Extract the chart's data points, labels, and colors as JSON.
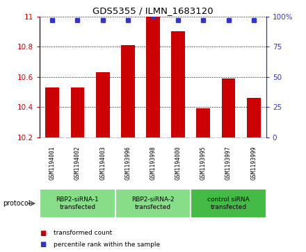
{
  "title": "GDS5355 / ILMN_1683120",
  "samples": [
    "GSM1194001",
    "GSM1194002",
    "GSM1194003",
    "GSM1193996",
    "GSM1193998",
    "GSM1194000",
    "GSM1193995",
    "GSM1193997",
    "GSM1193999"
  ],
  "bar_values": [
    10.53,
    10.53,
    10.63,
    10.81,
    11.0,
    10.9,
    10.39,
    10.59,
    10.46
  ],
  "percentile_values": [
    97,
    97,
    97,
    97,
    100,
    97,
    97,
    97,
    97
  ],
  "y_min": 10.2,
  "y_max": 11.0,
  "y_ticks": [
    10.2,
    10.4,
    10.6,
    10.8,
    11
  ],
  "y_ticks_right": [
    0,
    25,
    50,
    75,
    100
  ],
  "bar_color": "#cc0000",
  "percentile_color": "#3333cc",
  "groups": [
    {
      "label": "RBP2-siRNA-1\ntransfected",
      "start": 0,
      "end": 3,
      "color": "#88dd88"
    },
    {
      "label": "RBP2-siRNA-2\ntransfected",
      "start": 3,
      "end": 6,
      "color": "#88dd88"
    },
    {
      "label": "control siRNA\ntransfected",
      "start": 6,
      "end": 9,
      "color": "#44bb44"
    }
  ],
  "protocol_label": "protocol",
  "legend_items": [
    {
      "label": "transformed count",
      "color": "#cc0000"
    },
    {
      "label": "percentile rank within the sample",
      "color": "#3333cc"
    }
  ],
  "background_color": "#ffffff",
  "plot_bg_color": "#ffffff",
  "tick_color_left": "#cc0000",
  "tick_color_right": "#3333cc",
  "sample_box_color": "#cccccc",
  "figsize": [
    4.4,
    3.63
  ],
  "dpi": 100
}
